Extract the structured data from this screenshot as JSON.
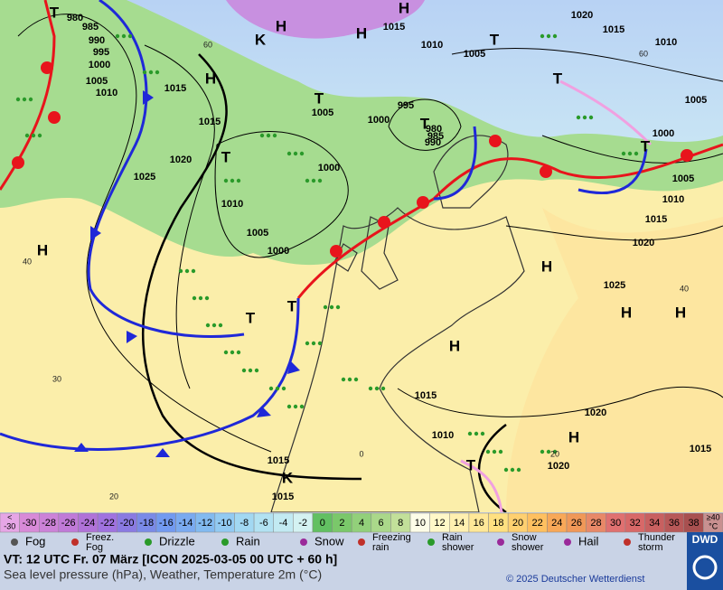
{
  "map": {
    "pressure_labels": [
      "980",
      "985",
      "990",
      "995",
      "1000",
      "1005",
      "1010",
      "1015",
      "1015",
      "1020",
      "1025",
      "1010",
      "1005",
      "1000",
      "1005",
      "995",
      "1000",
      "980",
      "985",
      "990",
      "1000",
      "1015",
      "1010",
      "1005",
      "1020",
      "1015",
      "1010",
      "1005",
      "1000",
      "1005",
      "1010",
      "1015",
      "1020",
      "1025",
      "1015",
      "1010",
      "1020",
      "1020",
      "1015",
      "1015",
      "1015"
    ],
    "centers": [
      "H",
      "H",
      "H",
      "H",
      "H",
      "H",
      "H",
      "H",
      "H",
      "H",
      "T",
      "T",
      "T",
      "T",
      "T",
      "T",
      "T",
      "T",
      "T",
      "T",
      "K",
      "K"
    ],
    "temperature_labels": [
      "60",
      "60",
      "40",
      "40",
      "30",
      "20",
      "20",
      "0"
    ]
  },
  "scale": [
    {
      "label": [
        "<",
        "-30"
      ],
      "color": "#e6a6e6"
    },
    {
      "label": "-30",
      "color": "#d88ad8"
    },
    {
      "label": "-28",
      "color": "#cc82d8"
    },
    {
      "label": "-26",
      "color": "#c07ad8"
    },
    {
      "label": "-24",
      "color": "#b072d8"
    },
    {
      "label": "-22",
      "color": "#a072e0"
    },
    {
      "label": "-20",
      "color": "#8a7ae2"
    },
    {
      "label": "-18",
      "color": "#7a8ae8"
    },
    {
      "label": "-16",
      "color": "#729af0"
    },
    {
      "label": "-14",
      "color": "#7aaaf0"
    },
    {
      "label": "-12",
      "color": "#82baf0"
    },
    {
      "label": "-10",
      "color": "#92caf2"
    },
    {
      "label": "-8",
      "color": "#a2d8f2"
    },
    {
      "label": "-6",
      "color": "#b2e2f2"
    },
    {
      "label": "-4",
      "color": "#c2eaf2"
    },
    {
      "label": "-2",
      "color": "#d4f2f2"
    },
    {
      "label": "0",
      "color": "#62c062"
    },
    {
      "label": "2",
      "color": "#7ac86a"
    },
    {
      "label": "4",
      "color": "#92d07a"
    },
    {
      "label": "6",
      "color": "#aad88a"
    },
    {
      "label": "8",
      "color": "#c2e09a"
    },
    {
      "label": "10",
      "color": "#fdfde8"
    },
    {
      "label": "12",
      "color": "#fff8c8"
    },
    {
      "label": "14",
      "color": "#fff0b0"
    },
    {
      "label": "16",
      "color": "#ffe898"
    },
    {
      "label": "18",
      "color": "#ffe080"
    },
    {
      "label": "20",
      "color": "#ffd070"
    },
    {
      "label": "22",
      "color": "#ffc060"
    },
    {
      "label": "24",
      "color": "#f8a858"
    },
    {
      "label": "26",
      "color": "#f09858"
    },
    {
      "label": "28",
      "color": "#e88868"
    },
    {
      "label": "30",
      "color": "#e07070"
    },
    {
      "label": "32",
      "color": "#d86868"
    },
    {
      "label": "34",
      "color": "#c86060"
    },
    {
      "label": "36",
      "color": "#b85858"
    },
    {
      "label": "38",
      "color": "#a85050"
    },
    {
      "label": [
        "≥40",
        "°C"
      ],
      "color": "#c89090"
    }
  ],
  "legend": [
    {
      "label": [
        "Fog"
      ]
    },
    {
      "label": [
        "Freez.",
        "Fog"
      ]
    },
    {
      "label": [
        "Drizzle"
      ]
    },
    {
      "label": [
        "Rain"
      ]
    },
    {
      "label": [
        "Snow"
      ]
    },
    {
      "label": [
        "Freezing",
        "rain"
      ]
    },
    {
      "label": [
        "Rain",
        "shower"
      ]
    },
    {
      "label": [
        "Snow",
        "shower"
      ]
    },
    {
      "label": [
        "Hail"
      ]
    },
    {
      "label": [
        "Thunder",
        "storm"
      ]
    }
  ],
  "footer": {
    "valid_time": "VT: 12 UTC Fr.  07 März [ICON 2025-03-05  00 UTC + 60 h]",
    "subtitle": "Sea level pressure (hPa), Weather, Temperature 2m (°C)",
    "copyright": "© 2025 Deutscher Wetterdienst",
    "logo": "DWD"
  }
}
